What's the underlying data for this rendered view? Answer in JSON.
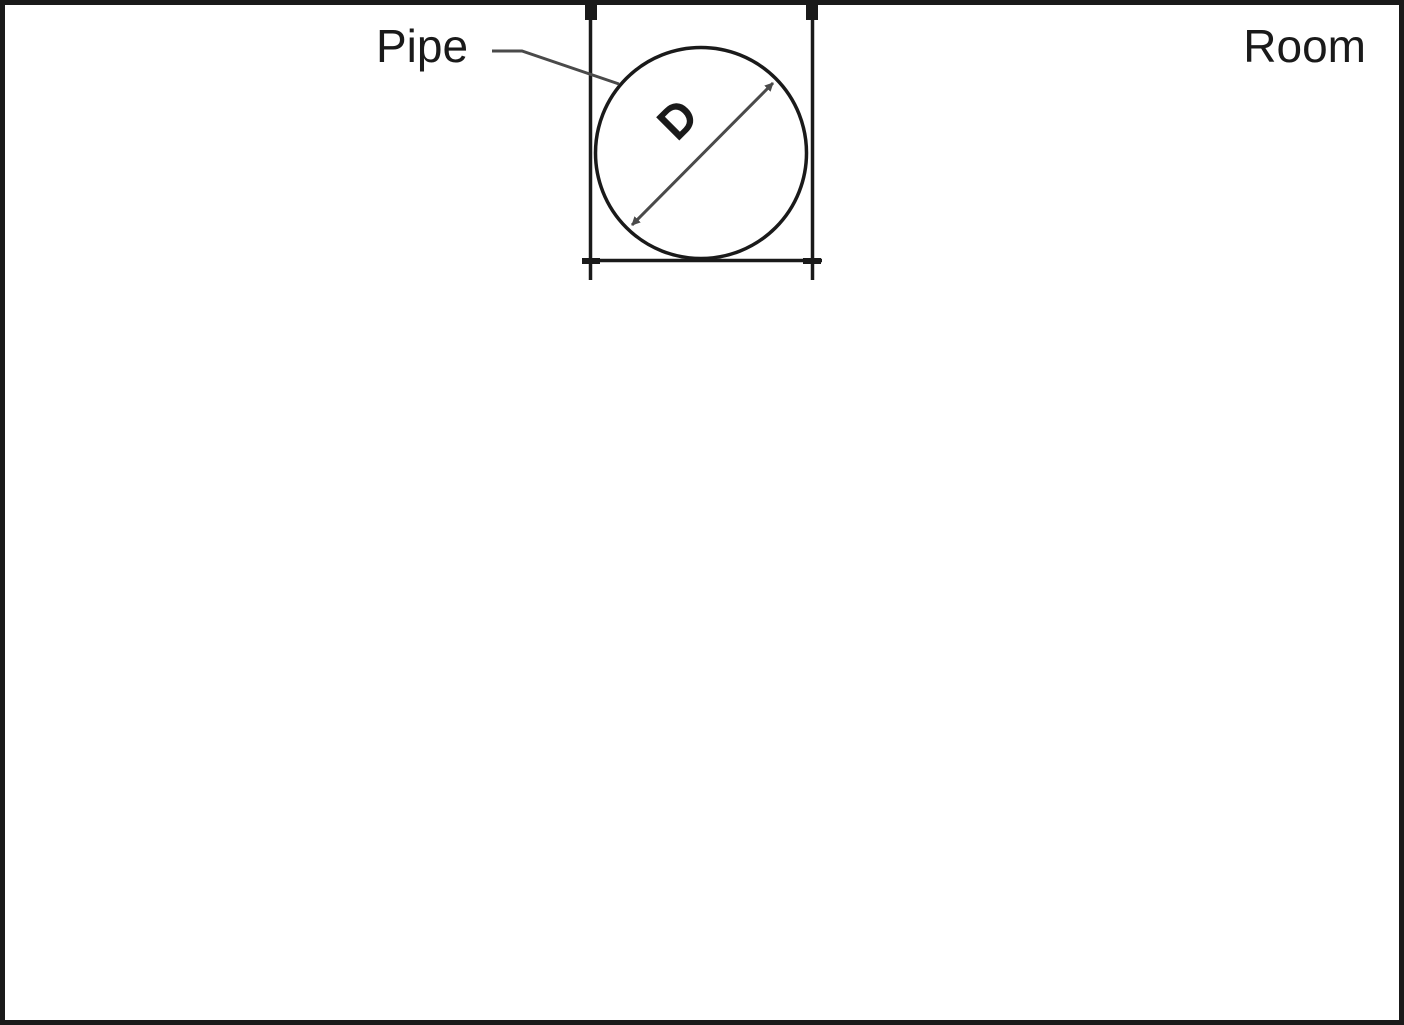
{
  "labels": {
    "pipe": "Pipe",
    "room": "Room",
    "diameter": "D"
  },
  "colors": {
    "line": "#1a1a1a",
    "leader": "#4a4a4a",
    "arrow": "#4a4a4a",
    "background": "#ffffff"
  }
}
